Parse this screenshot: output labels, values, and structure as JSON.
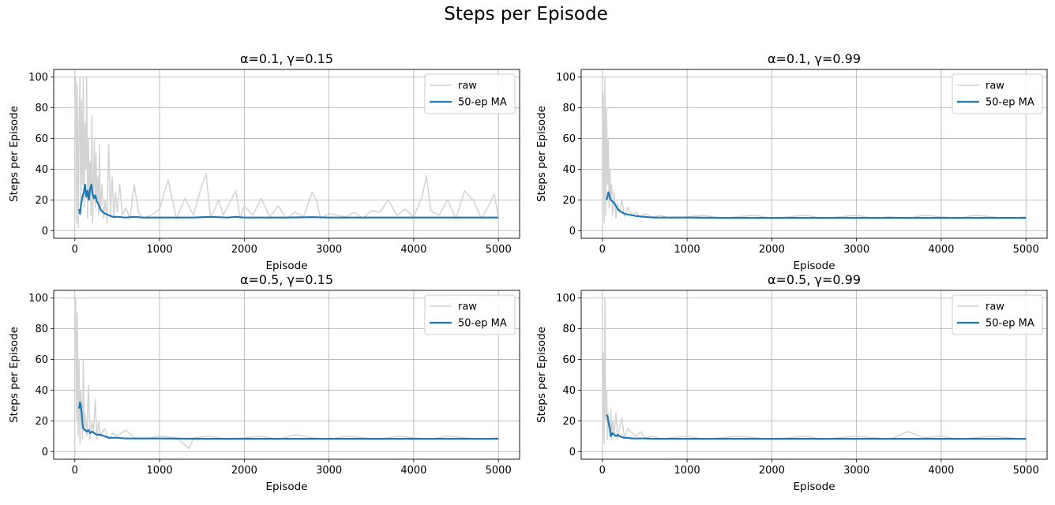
{
  "figure": {
    "suptitle": "Steps per Episode"
  },
  "chart_data": [
    {
      "type": "line",
      "title": "α=0.1, γ=0.15",
      "xlabel": "Episode",
      "ylabel": "Steps per Episode",
      "xlim": [
        -250,
        5250
      ],
      "ylim": [
        -5,
        105
      ],
      "xticks": [
        0,
        1000,
        2000,
        3000,
        4000,
        5000
      ],
      "yticks": [
        0,
        20,
        40,
        60,
        80,
        100
      ],
      "grid": true,
      "legend": {
        "placement": "upper-right",
        "entries": [
          "raw",
          "50-ep MA"
        ]
      },
      "series": [
        {
          "name": "raw",
          "color": "#d3d3d3",
          "x": [
            0,
            10,
            20,
            30,
            40,
            50,
            60,
            70,
            80,
            90,
            100,
            110,
            120,
            130,
            140,
            150,
            160,
            170,
            180,
            190,
            200,
            210,
            220,
            230,
            240,
            250,
            260,
            270,
            280,
            290,
            300,
            320,
            340,
            360,
            380,
            400,
            420,
            440,
            460,
            480,
            500,
            530,
            560,
            600,
            650,
            700,
            750,
            800,
            900,
            1000,
            1100,
            1200,
            1300,
            1400,
            1500,
            1550,
            1600,
            1700,
            1750,
            1800,
            1900,
            1950,
            2000,
            2100,
            2200,
            2300,
            2400,
            2500,
            2600,
            2700,
            2800,
            2850,
            2900,
            3000,
            3100,
            3200,
            3300,
            3400,
            3500,
            3600,
            3700,
            3800,
            3900,
            4000,
            4100,
            4150,
            4200,
            4300,
            4400,
            4500,
            4600,
            4700,
            4800,
            4900,
            4950,
            5000
          ],
          "y": [
            60,
            100,
            5,
            95,
            2,
            70,
            100,
            10,
            85,
            30,
            100,
            15,
            70,
            40,
            100,
            8,
            60,
            20,
            45,
            10,
            75,
            5,
            30,
            60,
            15,
            50,
            20,
            35,
            10,
            56,
            12,
            30,
            8,
            20,
            5,
            56,
            10,
            35,
            8,
            25,
            12,
            30,
            10,
            15,
            8,
            30,
            12,
            8,
            10,
            14,
            33,
            8,
            21,
            10,
            30,
            37,
            8,
            20,
            10,
            15,
            26,
            8,
            16,
            10,
            21,
            9,
            16,
            8,
            12,
            9,
            25,
            20,
            8,
            11,
            10,
            9,
            12,
            8,
            13,
            12,
            20,
            10,
            14,
            9,
            22,
            36,
            13,
            10,
            20,
            8,
            26,
            20,
            8,
            18,
            24,
            8
          ]
        },
        {
          "name": "50-ep MA",
          "color": "#1f77b4",
          "x": [
            49,
            60,
            75,
            90,
            105,
            120,
            135,
            150,
            165,
            180,
            195,
            210,
            225,
            240,
            260,
            280,
            300,
            330,
            360,
            400,
            450,
            500,
            600,
            700,
            800,
            1000,
            1200,
            1400,
            1600,
            1800,
            1900,
            2000,
            2200,
            2500,
            2800,
            3000,
            3500,
            4000,
            4500,
            5000
          ],
          "y": [
            14,
            11,
            18,
            22,
            25,
            30,
            22,
            26,
            20,
            27,
            30,
            24,
            21,
            23,
            19,
            17,
            14,
            12,
            11,
            10,
            9,
            9,
            8.5,
            9,
            8.5,
            8.5,
            8.5,
            8.5,
            9,
            8.5,
            9,
            8.5,
            8.5,
            8.5,
            8.8,
            8.5,
            8.5,
            8.5,
            8.5,
            8.5
          ]
        }
      ]
    },
    {
      "type": "line",
      "title": "α=0.1, γ=0.99",
      "xlabel": "Episode",
      "ylabel": "Steps per Episode",
      "xlim": [
        -250,
        5250
      ],
      "ylim": [
        -5,
        105
      ],
      "xticks": [
        0,
        1000,
        2000,
        3000,
        4000,
        5000
      ],
      "yticks": [
        0,
        20,
        40,
        60,
        80,
        100
      ],
      "grid": true,
      "legend": {
        "placement": "upper-right",
        "entries": [
          "raw",
          "50-ep MA"
        ]
      },
      "series": [
        {
          "name": "raw",
          "color": "#d3d3d3",
          "x": [
            0,
            10,
            20,
            30,
            40,
            50,
            60,
            70,
            80,
            90,
            100,
            110,
            120,
            140,
            160,
            180,
            200,
            230,
            260,
            300,
            350,
            400,
            450,
            500,
            600,
            700,
            800,
            1000,
            1200,
            1400,
            1600,
            1800,
            2000,
            2200,
            2400,
            2600,
            2800,
            3000,
            3200,
            3400,
            3600,
            3800,
            4000,
            4200,
            4400,
            4600,
            4800,
            5000
          ],
          "y": [
            20,
            90,
            5,
            100,
            10,
            80,
            30,
            60,
            15,
            40,
            20,
            30,
            10,
            25,
            8,
            18,
            12,
            20,
            9,
            15,
            10,
            12,
            8,
            11,
            9,
            10,
            8,
            9,
            10,
            8,
            9,
            10,
            8,
            9,
            10,
            8,
            9,
            10,
            8,
            9,
            8,
            10,
            9,
            8,
            10,
            9,
            8,
            9
          ]
        },
        {
          "name": "50-ep MA",
          "color": "#1f77b4",
          "x": [
            49,
            60,
            70,
            80,
            90,
            100,
            120,
            140,
            160,
            180,
            200,
            230,
            260,
            300,
            350,
            400,
            500,
            600,
            800,
            1000,
            1500,
            2000,
            2500,
            3000,
            3500,
            4000,
            4500,
            5000
          ],
          "y": [
            20,
            22,
            25,
            24,
            21,
            20,
            19,
            18,
            16,
            14,
            13,
            12,
            11,
            10.5,
            10,
            9.5,
            9,
            8.5,
            8.5,
            8.5,
            8.3,
            8.3,
            8.3,
            8.3,
            8.3,
            8.3,
            8.3,
            8.3
          ]
        }
      ]
    },
    {
      "type": "line",
      "title": "α=0.5, γ=0.15",
      "xlabel": "Episode",
      "ylabel": "Steps per Episode",
      "xlim": [
        -250,
        5250
      ],
      "ylim": [
        -5,
        105
      ],
      "xticks": [
        0,
        1000,
        2000,
        3000,
        4000,
        5000
      ],
      "yticks": [
        0,
        20,
        40,
        60,
        80,
        100
      ],
      "grid": true,
      "legend": {
        "placement": "upper-right",
        "entries": [
          "raw",
          "50-ep MA"
        ]
      },
      "series": [
        {
          "name": "raw",
          "color": "#d3d3d3",
          "x": [
            0,
            10,
            20,
            30,
            40,
            50,
            60,
            70,
            80,
            90,
            100,
            110,
            120,
            140,
            160,
            180,
            200,
            220,
            240,
            260,
            280,
            300,
            350,
            400,
            450,
            500,
            600,
            700,
            800,
            1000,
            1200,
            1350,
            1400,
            1600,
            1800,
            2000,
            2200,
            2400,
            2600,
            2800,
            3000,
            3200,
            3400,
            3600,
            3800,
            4000,
            4200,
            4400,
            4600,
            4800,
            5000
          ],
          "y": [
            88,
            100,
            20,
            90,
            10,
            60,
            5,
            40,
            30,
            8,
            60,
            15,
            25,
            10,
            43,
            8,
            20,
            12,
            34,
            8,
            20,
            10,
            15,
            8,
            12,
            10,
            14,
            9,
            8,
            10,
            9,
            2,
            9,
            10,
            8,
            9,
            10,
            8,
            11,
            9,
            8,
            10,
            9,
            8,
            10,
            9,
            8,
            10,
            9,
            8,
            9
          ]
        },
        {
          "name": "50-ep MA",
          "color": "#1f77b4",
          "x": [
            49,
            60,
            70,
            80,
            90,
            100,
            120,
            140,
            160,
            180,
            200,
            230,
            260,
            300,
            350,
            400,
            500,
            600,
            800,
            1000,
            1500,
            2000,
            2500,
            3000,
            3500,
            4000,
            4500,
            5000
          ],
          "y": [
            28,
            32,
            30,
            25,
            18,
            15,
            14,
            13,
            14,
            12,
            13,
            12,
            11,
            11,
            10,
            9,
            9,
            8.5,
            8.5,
            8.5,
            8.3,
            8.3,
            8.3,
            8.3,
            8.3,
            8.3,
            8.3,
            8.3
          ]
        }
      ]
    },
    {
      "type": "line",
      "title": "α=0.5, γ=0.99",
      "xlabel": "Episode",
      "ylabel": "Steps per Episode",
      "xlim": [
        -250,
        5250
      ],
      "ylim": [
        -5,
        105
      ],
      "xticks": [
        0,
        1000,
        2000,
        3000,
        4000,
        5000
      ],
      "yticks": [
        0,
        20,
        40,
        60,
        80,
        100
      ],
      "grid": true,
      "legend": {
        "placement": "upper-right",
        "entries": [
          "raw",
          "50-ep MA"
        ]
      },
      "series": [
        {
          "name": "raw",
          "color": "#d3d3d3",
          "x": [
            0,
            10,
            20,
            30,
            40,
            50,
            60,
            70,
            80,
            90,
            100,
            110,
            120,
            140,
            160,
            180,
            200,
            230,
            260,
            300,
            350,
            400,
            450,
            500,
            600,
            700,
            800,
            1000,
            1200,
            1400,
            1600,
            1800,
            2000,
            2200,
            2400,
            2600,
            2800,
            3000,
            3200,
            3400,
            3600,
            3800,
            4000,
            4200,
            4400,
            4600,
            4800,
            5000
          ],
          "y": [
            10,
            64,
            5,
            100,
            20,
            40,
            8,
            25,
            15,
            10,
            27,
            8,
            20,
            12,
            25,
            8,
            15,
            22,
            9,
            15,
            12,
            10,
            13,
            9,
            10,
            8,
            9,
            10,
            8,
            9,
            10,
            9,
            8,
            9,
            10,
            8,
            9,
            10,
            9,
            8,
            13,
            9,
            10,
            8,
            9,
            10,
            9,
            8
          ]
        },
        {
          "name": "50-ep MA",
          "color": "#1f77b4",
          "x": [
            49,
            60,
            70,
            80,
            90,
            100,
            120,
            140,
            160,
            180,
            200,
            230,
            260,
            300,
            350,
            400,
            500,
            600,
            800,
            1000,
            1500,
            2000,
            2500,
            3000,
            3500,
            4000,
            4500,
            5000
          ],
          "y": [
            24,
            23,
            20,
            17,
            15,
            10,
            12,
            11,
            10,
            11,
            10,
            9.5,
            9,
            9,
            8.5,
            8.5,
            8.5,
            8.3,
            8.3,
            8.3,
            8.3,
            8.3,
            8.3,
            8.3,
            8.3,
            8.3,
            8.3,
            8.3
          ]
        }
      ]
    }
  ]
}
